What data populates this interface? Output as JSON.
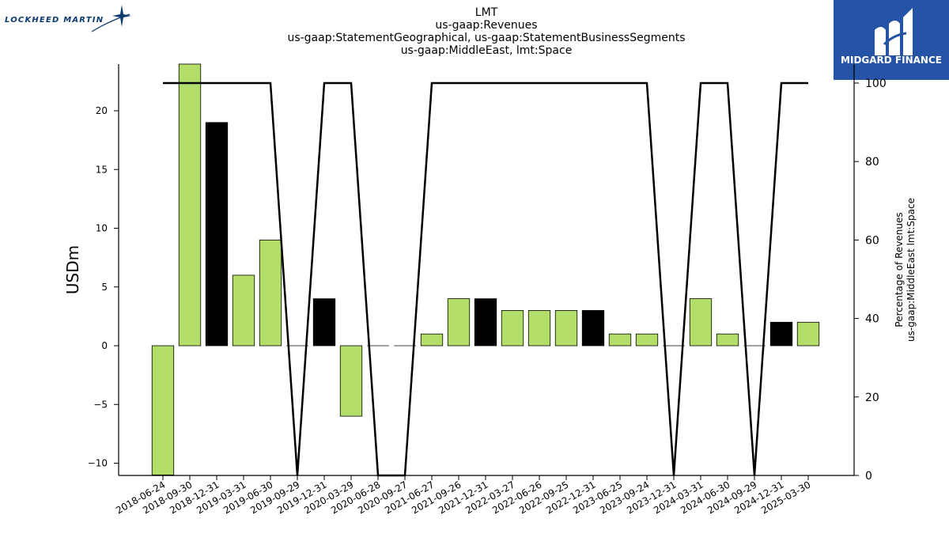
{
  "logos": {
    "left_text": "LOCKHEED MARTIN",
    "right_text": "MIDGARD FINANCE",
    "right_bg": "#2554a6"
  },
  "title_lines": [
    "LMT",
    "us-gaap:Revenues",
    "us-gaap:StatementGeographical, us-gaap:StatementBusinessSegments",
    "us-gaap:MiddleEast, lmt:Space"
  ],
  "chart_data": {
    "type": "bar",
    "title": "LMT us-gaap:Revenues us-gaap:StatementGeographical, us-gaap:StatementBusinessSegments us-gaap:MiddleEast, lmt:Space",
    "ylabel": "USDm",
    "y2label": [
      "Percentage of Revenues",
      "us-gaap:MiddleEast lmt:Space"
    ],
    "ylim": [
      -11,
      24
    ],
    "y2lim": [
      0,
      105
    ],
    "yticks": [
      -10,
      -5,
      0,
      5,
      10,
      15,
      20
    ],
    "ytick_labels": [
      "−10",
      "−5",
      "0",
      "5",
      "10",
      "15",
      "20"
    ],
    "y2ticks": [
      0,
      20,
      40,
      60,
      80,
      100
    ],
    "categories": [
      "2018-06-24",
      "2018-09-30",
      "2018-12-31",
      "2019-03-31",
      "2019-06-30",
      "2019-09-29",
      "2019-12-31",
      "2020-03-29",
      "2020-06-28",
      "2020-09-27",
      "2021-06-27",
      "2021-09-26",
      "2021-12-31",
      "2022-03-27",
      "2022-06-26",
      "2022-09-25",
      "2022-12-31",
      "2023-06-25",
      "2023-09-24",
      "2023-12-31",
      "2024-03-31",
      "2024-06-30",
      "2024-09-29",
      "2024-12-31",
      "2025-03-30"
    ],
    "series": [
      {
        "type": "bar",
        "values": [
          -11,
          24,
          19,
          6,
          9,
          0,
          4,
          -6,
          0,
          0,
          1,
          4,
          4,
          3,
          3,
          3,
          3,
          1,
          1,
          0,
          4,
          1,
          0,
          2,
          2
        ],
        "colors": [
          "#b3de69",
          "#b3de69",
          "#000000",
          "#b3de69",
          "#b3de69",
          "#b3de69",
          "#000000",
          "#b3de69",
          "#b3de69",
          "#b3de69",
          "#b3de69",
          "#b3de69",
          "#000000",
          "#b3de69",
          "#b3de69",
          "#b3de69",
          "#000000",
          "#b3de69",
          "#b3de69",
          "#b3de69",
          "#b3de69",
          "#b3de69",
          "#b3de69",
          "#000000",
          "#b3de69"
        ]
      },
      {
        "type": "line",
        "axis": "right",
        "color": "#000000",
        "values": [
          100,
          100,
          100,
          100,
          100,
          0,
          100,
          100,
          0,
          0,
          100,
          100,
          100,
          100,
          100,
          100,
          100,
          100,
          100,
          0,
          100,
          100,
          0,
          100,
          100
        ]
      }
    ],
    "grid": false,
    "legend": "none"
  }
}
